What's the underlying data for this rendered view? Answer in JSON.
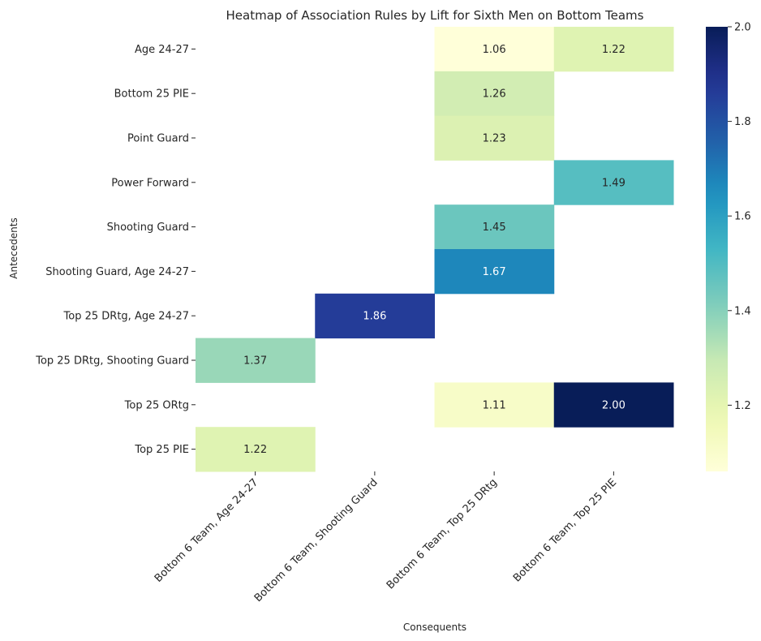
{
  "chart_data": {
    "type": "heatmap",
    "title": "Heatmap of Association Rules by Lift for Sixth Men on Bottom Teams",
    "xlabel": "Consequents",
    "ylabel": "Antecedents",
    "rows": [
      "Age 24-27",
      "Bottom 25 PIE",
      "Point Guard",
      "Power Forward",
      "Shooting Guard",
      "Shooting Guard, Age 24-27",
      "Top 25 DRtg, Age 24-27",
      "Top 25 DRtg, Shooting Guard",
      "Top 25 ORtg",
      "Top 25 PIE"
    ],
    "columns": [
      "Bottom 6 Team, Age 24-27",
      "Bottom 6 Team, Shooting Guard",
      "Bottom 6 Team, Top 25 DRtg",
      "Bottom 6 Team, Top 25 PIE"
    ],
    "values": [
      [
        null,
        null,
        1.06,
        1.22
      ],
      [
        null,
        null,
        1.26,
        null
      ],
      [
        null,
        null,
        1.23,
        null
      ],
      [
        null,
        null,
        null,
        1.49
      ],
      [
        null,
        null,
        1.45,
        null
      ],
      [
        null,
        null,
        1.67,
        null
      ],
      [
        null,
        1.86,
        null,
        null
      ],
      [
        1.37,
        null,
        null,
        null
      ],
      [
        null,
        null,
        1.11,
        2.0
      ],
      [
        1.22,
        null,
        null,
        null
      ]
    ],
    "value_labels": [
      [
        null,
        null,
        "1.06",
        "1.22"
      ],
      [
        null,
        null,
        "1.26",
        null
      ],
      [
        null,
        null,
        "1.23",
        null
      ],
      [
        null,
        null,
        null,
        "1.49"
      ],
      [
        null,
        null,
        "1.45",
        null
      ],
      [
        null,
        null,
        "1.67",
        null
      ],
      [
        null,
        "1.86",
        null,
        null
      ],
      [
        "1.37",
        null,
        null,
        null
      ],
      [
        null,
        null,
        "1.11",
        "2.00"
      ],
      [
        "1.22",
        null,
        null,
        null
      ]
    ],
    "colormap": "YlGnBu",
    "color_range": [
      1.06,
      2.0
    ],
    "colorbar_ticks": [
      1.2,
      1.4,
      1.6,
      1.8,
      2.0
    ],
    "colorbar_tick_labels": [
      "1.2",
      "1.4",
      "1.6",
      "1.8",
      "2.0"
    ],
    "grid": false,
    "colorbar": "right"
  }
}
